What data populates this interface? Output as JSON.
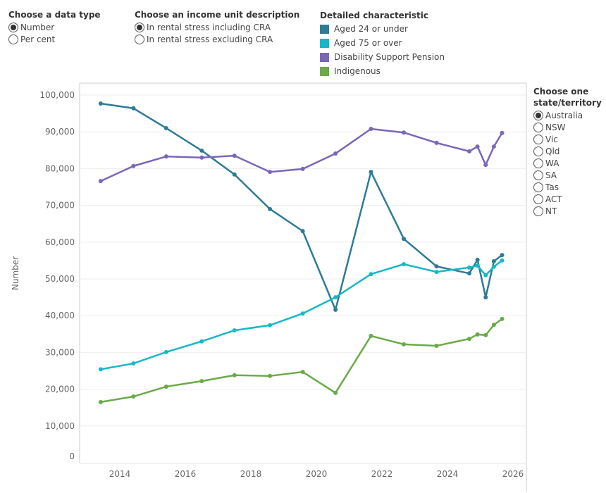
{
  "data_type": {
    "title": "Choose a data type",
    "options": [
      "Number",
      "Per cent"
    ],
    "selected": 0
  },
  "income_unit": {
    "title": "Choose an income unit description",
    "options": [
      "In rental stress including CRA",
      "In rental stress excluding CRA"
    ],
    "selected": 0
  },
  "legend": {
    "title": "Detailed characteristic"
  },
  "state": {
    "title_line1": "Choose one",
    "title_line2": "state/territory",
    "options": [
      "Australia",
      "NSW",
      "Vic",
      "Qld",
      "WA",
      "SA",
      "Tas",
      "ACT",
      "NT"
    ],
    "selected": 0
  },
  "chart_data": {
    "type": "line",
    "ylabel": "Number",
    "ylim": [
      0,
      100000
    ],
    "yticks": [
      "0",
      "10,000",
      "20,000",
      "30,000",
      "40,000",
      "50,000",
      "60,000",
      "70,000",
      "80,000",
      "90,000",
      "100,000"
    ],
    "xticks": [
      "2014",
      "2016",
      "2018",
      "2020",
      "2022",
      "2024",
      "2026"
    ],
    "grid": true,
    "x": [
      "2013-06",
      "2014-06",
      "2015-06",
      "2016-07",
      "2017-07",
      "2018-08",
      "2019-08",
      "2020-08",
      "2021-09",
      "2022-09",
      "2023-09",
      "2024-09",
      "2024-12",
      "2025-03",
      "2025-06",
      "2025-09"
    ],
    "series": [
      {
        "name": "Aged 24 or under",
        "color": "#2e7b96",
        "values": [
          97700,
          96400,
          91000,
          84900,
          78400,
          69000,
          63000,
          41600,
          79100,
          60900,
          53400,
          51500,
          55200,
          45000,
          54800,
          56500
        ]
      },
      {
        "name": "Aged 75 or over",
        "color": "#17b8c6",
        "values": [
          25400,
          27000,
          30100,
          33000,
          36000,
          37400,
          40600,
          45000,
          51300,
          54000,
          51900,
          53100,
          53600,
          51000,
          53300,
          55000
        ]
      },
      {
        "name": "Disability Support Pension",
        "color": "#7b66b8",
        "values": [
          76600,
          80700,
          83300,
          83000,
          83500,
          79100,
          79900,
          84100,
          90800,
          89800,
          87000,
          84700,
          86000,
          81000,
          86000,
          89700
        ]
      },
      {
        "name": "Indigenous",
        "color": "#6aab47",
        "values": [
          16500,
          18000,
          20700,
          22200,
          23800,
          23600,
          24700,
          19000,
          34500,
          32200,
          31800,
          33700,
          34900,
          34700,
          37500,
          39100
        ]
      }
    ]
  }
}
